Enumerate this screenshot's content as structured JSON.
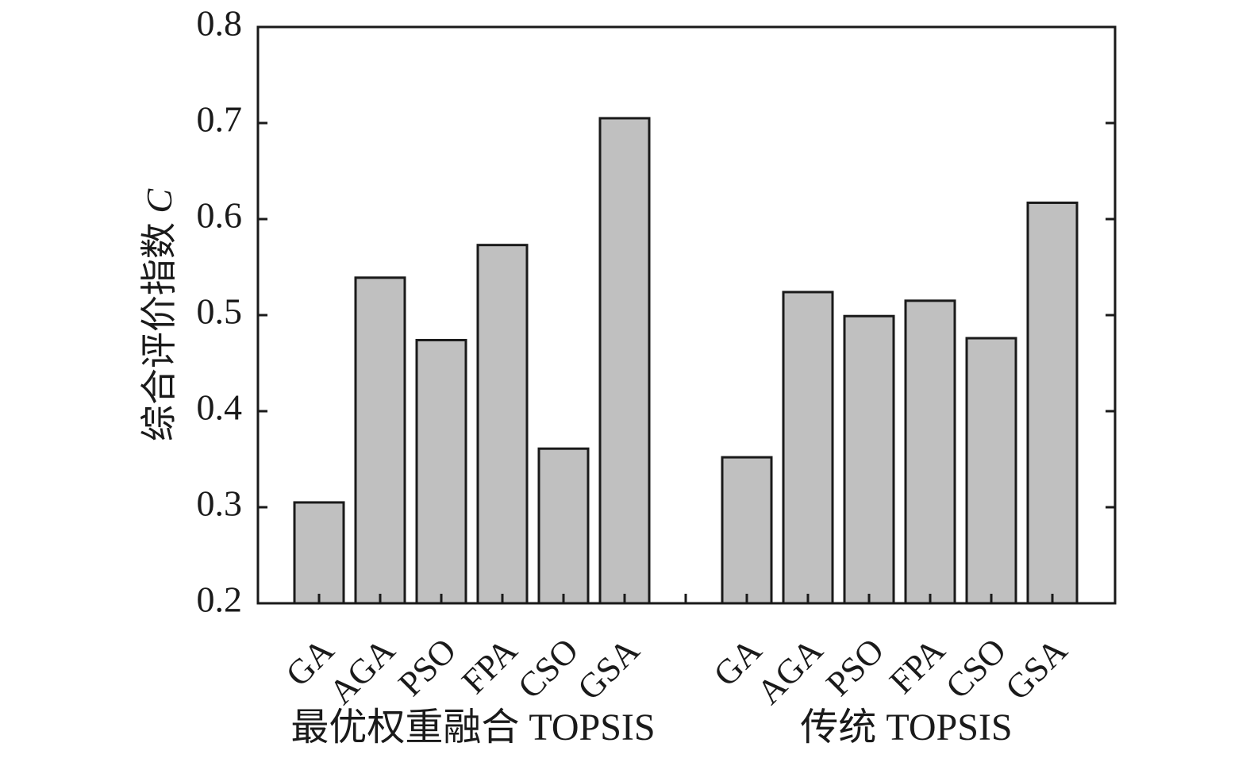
{
  "chart_data": {
    "type": "bar",
    "ylabel": "综合评价指数",
    "ylabel_var": "C",
    "ylim": [
      0.2,
      0.8
    ],
    "yticks": [
      "0.2",
      "0.3",
      "0.4",
      "0.5",
      "0.6",
      "0.7",
      "0.8"
    ],
    "groups": [
      {
        "name": "最优权重融合 TOPSIS",
        "categories": [
          "GA",
          "AGA",
          "PSO",
          "FPA",
          "CSO",
          "GSA"
        ],
        "values": [
          0.305,
          0.539,
          0.474,
          0.573,
          0.361,
          0.705
        ]
      },
      {
        "name": "传统 TOPSIS",
        "categories": [
          "GA",
          "AGA",
          "PSO",
          "FPA",
          "CSO",
          "GSA"
        ],
        "values": [
          0.352,
          0.524,
          0.499,
          0.515,
          0.476,
          0.617
        ]
      }
    ],
    "bar_color": "#c0c0c0",
    "grid": false,
    "legend": "none"
  }
}
